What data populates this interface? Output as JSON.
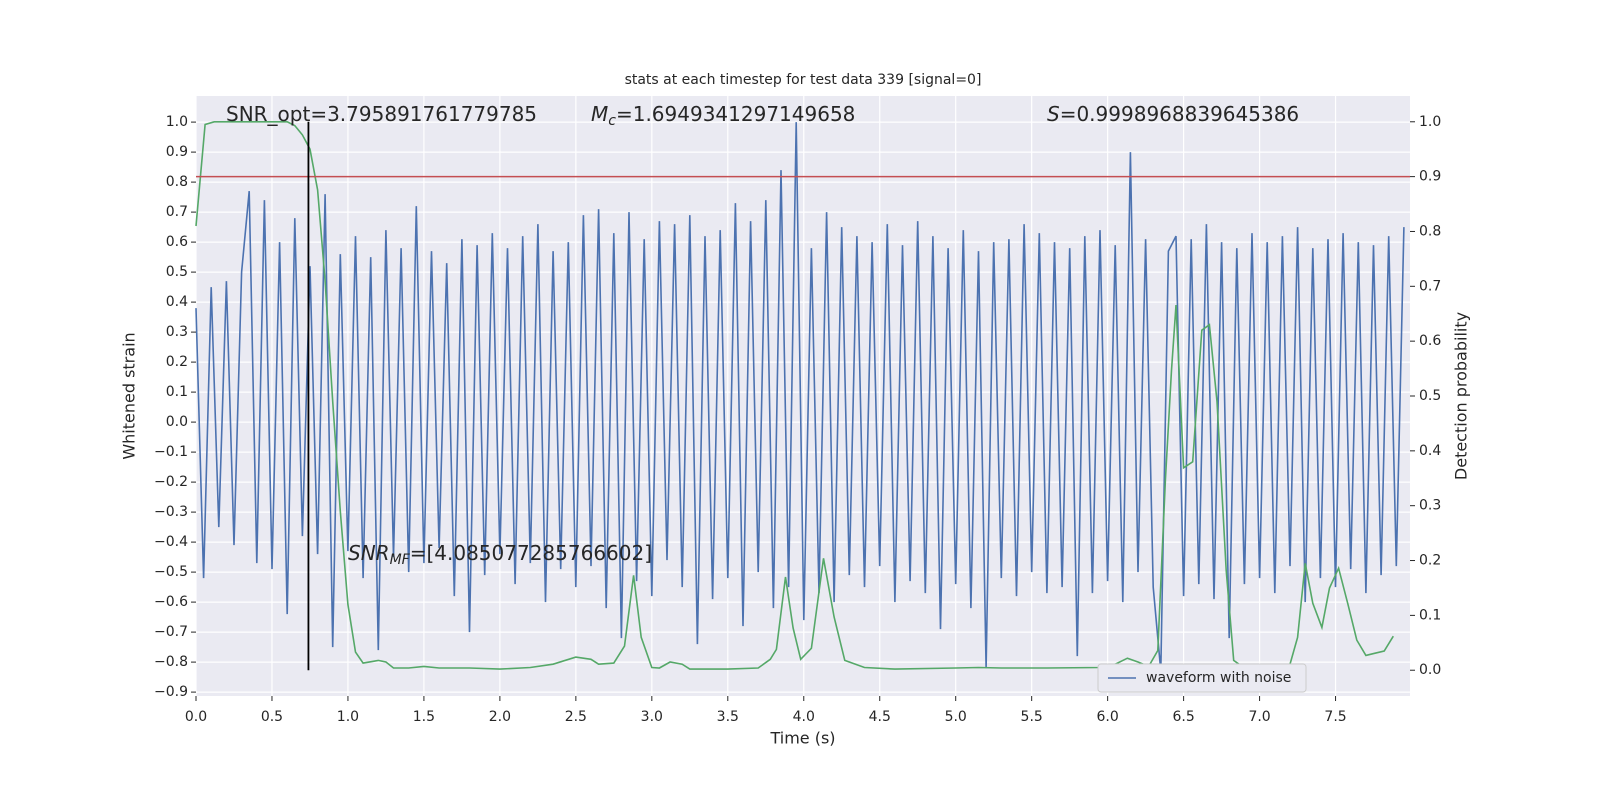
{
  "chart_data": {
    "type": "line",
    "title": "stats at each timestep for test data 339 [signal=0]",
    "x_label": "Time (s)",
    "y_label": "Whitened strain",
    "y2_label": "Detection probability",
    "xlim": [
      0,
      7.99
    ],
    "ylim": [
      -0.913,
      1.087
    ],
    "y2lim": [
      -0.047,
      1.047
    ],
    "grid": true,
    "legend": "lower right",
    "xticks": [
      {
        "value": 0,
        "label": "0.0"
      },
      {
        "value": 0.5,
        "label": "0.5"
      },
      {
        "value": 1,
        "label": "1.0"
      },
      {
        "value": 1.5,
        "label": "1.5"
      },
      {
        "value": 2,
        "label": "2.0"
      },
      {
        "value": 2.5,
        "label": "2.5"
      },
      {
        "value": 3,
        "label": "3.0"
      },
      {
        "value": 3.5,
        "label": "3.5"
      },
      {
        "value": 4,
        "label": "4.0"
      },
      {
        "value": 4.5,
        "label": "4.5"
      },
      {
        "value": 5,
        "label": "5.0"
      },
      {
        "value": 5.5,
        "label": "5.5"
      },
      {
        "value": 6,
        "label": "6.0"
      },
      {
        "value": 6.5,
        "label": "6.5"
      },
      {
        "value": 7,
        "label": "7.0"
      },
      {
        "value": 7.5,
        "label": "7.5"
      }
    ],
    "yticks": [
      {
        "value": -0.9,
        "label": "−0.9"
      },
      {
        "value": -0.8,
        "label": "−0.8"
      },
      {
        "value": -0.7,
        "label": "−0.7"
      },
      {
        "value": -0.6,
        "label": "−0.6"
      },
      {
        "value": -0.5,
        "label": "−0.5"
      },
      {
        "value": -0.4,
        "label": "−0.4"
      },
      {
        "value": -0.3,
        "label": "−0.3"
      },
      {
        "value": -0.2,
        "label": "−0.2"
      },
      {
        "value": -0.1,
        "label": "−0.1"
      },
      {
        "value": 0,
        "label": "0.0"
      },
      {
        "value": 0.1,
        "label": "0.1"
      },
      {
        "value": 0.2,
        "label": "0.2"
      },
      {
        "value": 0.3,
        "label": "0.3"
      },
      {
        "value": 0.4,
        "label": "0.4"
      },
      {
        "value": 0.5,
        "label": "0.5"
      },
      {
        "value": 0.6,
        "label": "0.6"
      },
      {
        "value": 0.7,
        "label": "0.7"
      },
      {
        "value": 0.8,
        "label": "0.8"
      },
      {
        "value": 0.9,
        "label": "0.9"
      },
      {
        "value": 1,
        "label": "1.0"
      }
    ],
    "y2ticks": [
      {
        "value": 0,
        "label": "0.0"
      },
      {
        "value": 0.1,
        "label": "0.1"
      },
      {
        "value": 0.2,
        "label": "0.2"
      },
      {
        "value": 0.3,
        "label": "0.3"
      },
      {
        "value": 0.4,
        "label": "0.4"
      },
      {
        "value": 0.5,
        "label": "0.5"
      },
      {
        "value": 0.6,
        "label": "0.6"
      },
      {
        "value": 0.7,
        "label": "0.7"
      },
      {
        "value": 0.8,
        "label": "0.8"
      },
      {
        "value": 0.9,
        "label": "0.9"
      },
      {
        "value": 1,
        "label": "1.0"
      }
    ],
    "threshold": {
      "value": 0.9,
      "axis": "y2",
      "color": "#c44e52"
    },
    "marker": {
      "x": 0.74,
      "y2_range": [
        0,
        1
      ],
      "color": "#000000"
    },
    "annotations": {
      "snr_opt": "SNR_opt=3.795891761779785",
      "mc": {
        "symbol": "M",
        "sub": "c",
        "text": "=1.6949341297149658"
      },
      "s": {
        "symbol": "S",
        "text": "=0.9998968839645386"
      },
      "snr_mf": {
        "symbol": "SNR",
        "sub": "MF",
        "text": "=[4.085077285766602]"
      }
    },
    "series": [
      {
        "name": "waveform with noise",
        "color": "#4c72b0",
        "x": [
          0,
          0.05,
          0.1,
          0.15,
          0.2,
          0.25,
          0.3,
          0.35,
          0.4,
          0.45,
          0.5,
          0.55,
          0.6,
          0.65,
          0.7,
          0.75,
          0.8,
          0.85,
          0.9,
          0.95,
          1,
          1.05,
          1.1,
          1.15,
          1.2,
          1.25,
          1.3,
          1.35,
          1.4,
          1.45,
          1.5,
          1.55,
          1.6,
          1.65,
          1.7,
          1.75,
          1.8,
          1.85,
          1.9,
          1.95,
          2,
          2.05,
          2.1,
          2.15,
          2.2,
          2.25,
          2.3,
          2.35,
          2.4,
          2.45,
          2.5,
          2.55,
          2.6,
          2.65,
          2.7,
          2.75,
          2.8,
          2.85,
          2.9,
          2.95,
          3,
          3.05,
          3.1,
          3.15,
          3.2,
          3.25,
          3.3,
          3.35,
          3.4,
          3.45,
          3.5,
          3.55,
          3.6,
          3.65,
          3.7,
          3.75,
          3.8,
          3.85,
          3.9,
          3.95,
          4,
          4.05,
          4.1,
          4.15,
          4.2,
          4.25,
          4.3,
          4.35,
          4.4,
          4.45,
          4.5,
          4.55,
          4.6,
          4.65,
          4.7,
          4.75,
          4.8,
          4.85,
          4.9,
          4.95,
          5,
          5.05,
          5.1,
          5.15,
          5.2,
          5.25,
          5.3,
          5.35,
          5.4,
          5.45,
          5.5,
          5.55,
          5.6,
          5.65,
          5.7,
          5.75,
          5.8,
          5.85,
          5.9,
          5.95,
          6,
          6.05,
          6.1,
          6.15,
          6.2,
          6.25,
          6.3,
          6.35,
          6.4,
          6.45,
          6.5,
          6.55,
          6.6,
          6.65,
          6.7,
          6.75,
          6.8,
          6.85,
          6.9,
          6.95,
          7,
          7.05,
          7.1,
          7.15,
          7.2,
          7.25,
          7.3,
          7.35,
          7.4,
          7.45,
          7.5,
          7.55,
          7.6,
          7.65,
          7.7,
          7.75,
          7.8,
          7.85,
          7.9,
          7.95
        ],
        "values": [
          0.38,
          -0.52,
          0.45,
          -0.35,
          0.47,
          -0.41,
          0.5,
          0.77,
          -0.47,
          0.74,
          -0.49,
          0.6,
          -0.64,
          0.68,
          -0.38,
          0.52,
          -0.44,
          0.76,
          -0.75,
          0.56,
          -0.43,
          0.62,
          -0.52,
          0.55,
          -0.76,
          0.64,
          -0.45,
          0.58,
          -0.5,
          0.72,
          -0.47,
          0.57,
          -0.42,
          0.53,
          -0.58,
          0.61,
          -0.7,
          0.59,
          -0.51,
          0.63,
          -0.44,
          0.58,
          -0.54,
          0.62,
          -0.47,
          0.66,
          -0.6,
          0.57,
          -0.49,
          0.6,
          -0.55,
          0.69,
          -0.48,
          0.71,
          -0.62,
          0.63,
          -0.72,
          0.7,
          -0.53,
          0.61,
          -0.58,
          0.67,
          -0.46,
          0.66,
          -0.55,
          0.69,
          -0.74,
          0.62,
          -0.59,
          0.64,
          -0.52,
          0.73,
          -0.68,
          0.67,
          -0.5,
          0.74,
          -0.62,
          0.84,
          -0.55,
          1.0,
          -0.66,
          0.58,
          -0.57,
          0.7,
          -0.6,
          0.65,
          -0.51,
          0.62,
          -0.55,
          0.6,
          -0.48,
          0.66,
          -0.6,
          0.59,
          -0.53,
          0.67,
          -0.57,
          0.62,
          -0.69,
          0.58,
          -0.54,
          0.64,
          -0.62,
          0.57,
          -0.82,
          0.6,
          -0.52,
          0.61,
          -0.58,
          0.66,
          -0.5,
          0.63,
          -0.57,
          0.6,
          -0.55,
          0.58,
          -0.78,
          0.62,
          -0.57,
          0.64,
          -0.53,
          0.59,
          -0.6,
          0.9,
          -0.5,
          0.61,
          -0.55,
          -0.83,
          0.57,
          0.62,
          -0.58,
          0.61,
          -0.54,
          0.66,
          -0.59,
          0.6,
          -0.72,
          0.58,
          -0.54,
          0.63,
          -0.52,
          0.6,
          -0.57,
          0.62,
          -0.48,
          0.65,
          -0.6,
          0.58,
          -0.52,
          0.61,
          -0.55,
          0.63,
          -0.49,
          0.6,
          -0.57,
          0.59,
          -0.51,
          0.62,
          -0.48,
          0.65
        ]
      },
      {
        "color": "#55a868",
        "axis": "y2",
        "x": [
          0,
          0.06,
          0.12,
          0.6,
          0.65,
          0.7,
          0.75,
          0.8,
          0.85,
          0.9,
          0.95,
          1,
          1.05,
          1.1,
          1.2,
          1.25,
          1.3,
          1.4,
          1.5,
          1.6,
          1.8,
          2,
          2.2,
          2.35,
          2.5,
          2.6,
          2.65,
          2.75,
          2.82,
          2.88,
          2.93,
          3,
          3.05,
          3.12,
          3.2,
          3.25,
          3.5,
          3.7,
          3.78,
          3.82,
          3.88,
          3.93,
          3.98,
          4.05,
          4.13,
          4.2,
          4.27,
          4.4,
          4.6,
          5,
          5.15,
          5.3,
          5.6,
          5.95,
          6.05,
          6.13,
          6.2,
          6.27,
          6.33,
          6.38,
          6.42,
          6.45,
          6.5,
          6.56,
          6.62,
          6.67,
          6.72,
          6.78,
          6.83,
          6.9,
          7,
          7.15,
          7.2,
          7.25,
          7.3,
          7.35,
          7.41,
          7.46,
          7.52,
          7.58,
          7.64,
          7.7,
          7.76,
          7.82,
          7.88
        ],
        "values": [
          0.81,
          0.995,
          1.0,
          1.0,
          0.993,
          0.976,
          0.95,
          0.876,
          0.71,
          0.49,
          0.29,
          0.12,
          0.033,
          0.013,
          0.018,
          0.015,
          0.004,
          0.004,
          0.007,
          0.004,
          0.004,
          0.002,
          0.005,
          0.011,
          0.024,
          0.02,
          0.011,
          0.013,
          0.044,
          0.173,
          0.06,
          0.005,
          0.004,
          0.015,
          0.011,
          0.002,
          0.002,
          0.004,
          0.02,
          0.038,
          0.17,
          0.077,
          0.02,
          0.04,
          0.204,
          0.097,
          0.018,
          0.005,
          0.002,
          0.004,
          0.005,
          0.004,
          0.004,
          0.005,
          0.011,
          0.022,
          0.015,
          0.007,
          0.036,
          0.347,
          0.547,
          0.666,
          0.369,
          0.38,
          0.62,
          0.63,
          0.49,
          0.182,
          0.018,
          0.004,
          0.004,
          0.007,
          0.011,
          0.06,
          0.195,
          0.122,
          0.078,
          0.15,
          0.186,
          0.122,
          0.055,
          0.027,
          0.031,
          0.035,
          0.062
        ]
      }
    ]
  }
}
